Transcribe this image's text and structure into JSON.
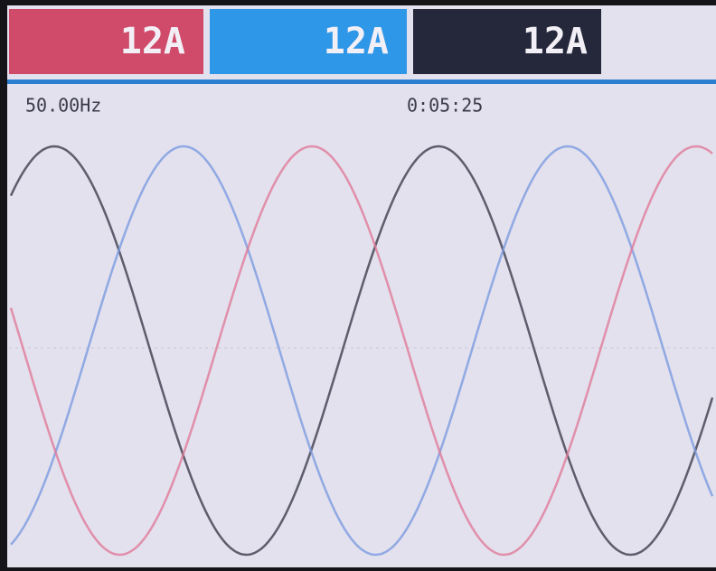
{
  "readings": [
    {
      "label": "12A"
    },
    {
      "label": "12A"
    },
    {
      "label": "12A"
    }
  ],
  "status": {
    "frequency": "50.00Hz",
    "time": "0:05:25"
  }
}
